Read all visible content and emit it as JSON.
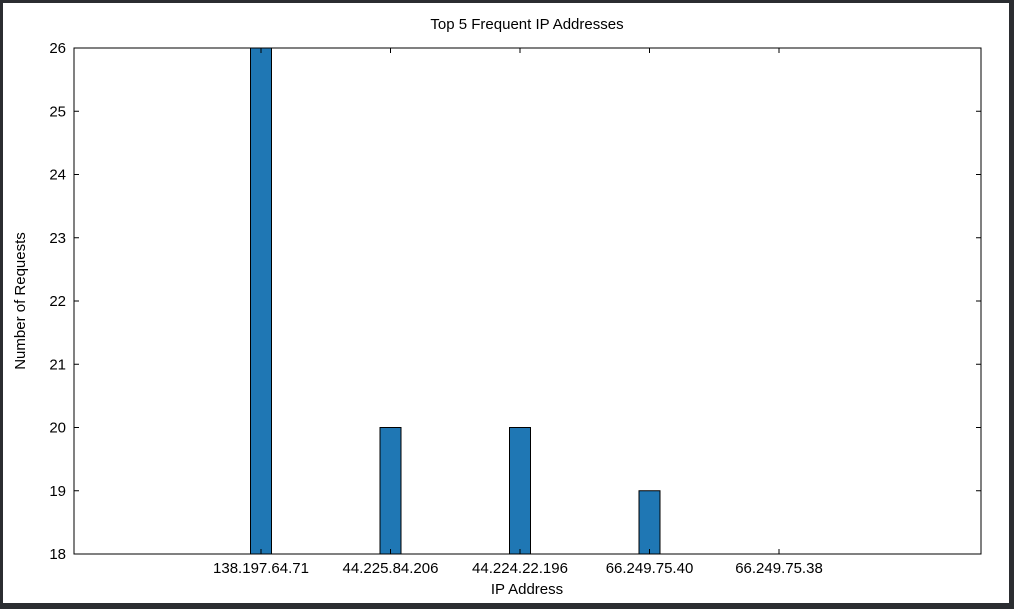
{
  "chart_data": {
    "type": "bar",
    "title": "Top 5 Frequent IP Addresses",
    "xlabel": "IP Address",
    "ylabel": "Number of Requests",
    "categories": [
      "138.197.64.71",
      "44.225.84.206",
      "44.224.22.196",
      "66.249.75.40",
      "66.249.75.38"
    ],
    "values": [
      26,
      20,
      20,
      19,
      18
    ],
    "ylim": [
      18,
      26
    ],
    "yticks": [
      "18",
      "19",
      "20",
      "21",
      "22",
      "23",
      "24",
      "25",
      "26"
    ],
    "grid": false,
    "bar_color": "#1f77b4",
    "bar_edge_color": "#000000"
  }
}
